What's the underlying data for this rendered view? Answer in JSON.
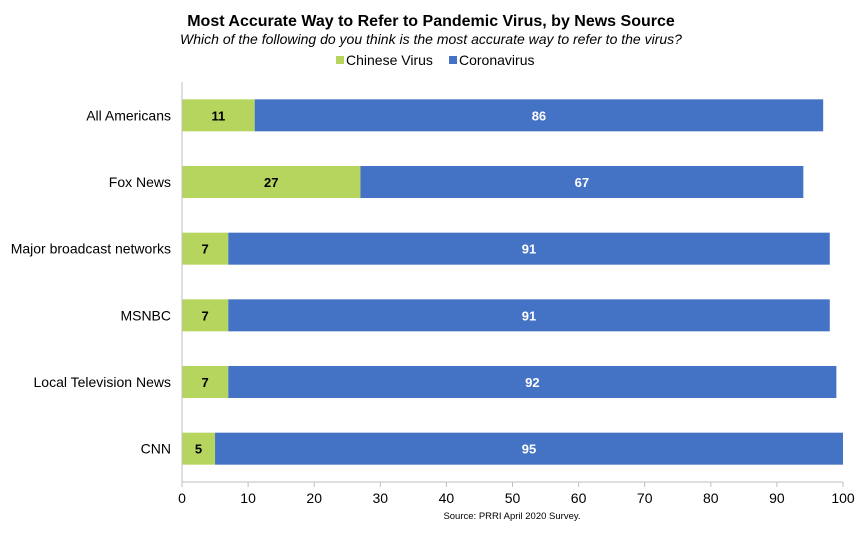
{
  "chart_data": {
    "type": "bar",
    "orientation": "horizontal",
    "stacked": true,
    "title": "Most Accurate Way to Refer to Pandemic Virus, by News Source",
    "subtitle": "Which of the following do you think is the most accurate way to refer to the virus?",
    "source": "Source: PRRI April 2020 Survey.",
    "xlabel": "",
    "ylabel": "",
    "xlim": [
      0,
      100
    ],
    "x_ticks": [
      0,
      10,
      20,
      30,
      40,
      50,
      60,
      70,
      80,
      90,
      100
    ],
    "grid": false,
    "legend_position": "top",
    "categories": [
      "All Americans",
      "Fox News",
      "Major broadcast networks",
      "MSNBC",
      "Local Television News",
      "CNN"
    ],
    "series": [
      {
        "name": "Chinese Virus",
        "color": "#B5D55F",
        "label_color": "#000000",
        "values": [
          11,
          27,
          7,
          7,
          7,
          5
        ]
      },
      {
        "name": "Coronavirus",
        "color": "#4472C4",
        "label_color": "#FFFFFF",
        "values": [
          86,
          67,
          91,
          91,
          92,
          95
        ]
      }
    ]
  }
}
